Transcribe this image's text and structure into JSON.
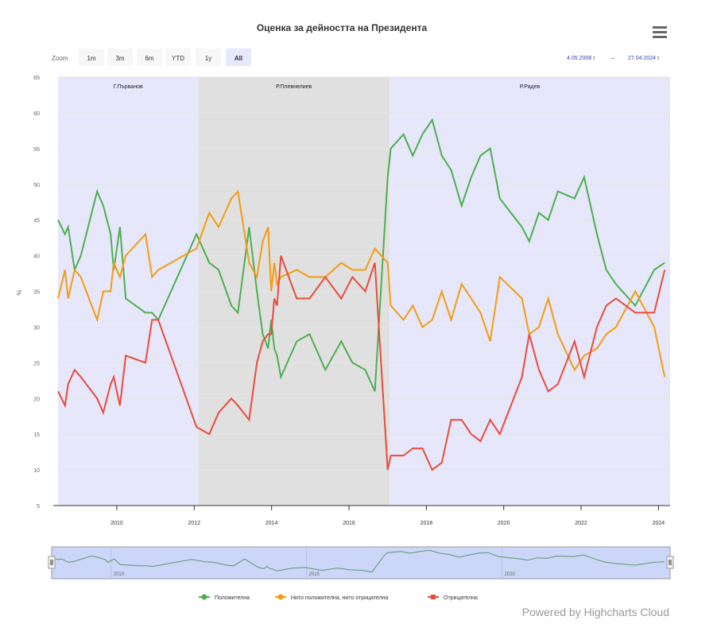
{
  "title": "Оценка за дейността на Президента",
  "menu_icon": "hamburger-menu-icon",
  "range_selector": {
    "zoom_label": "Zoom",
    "buttons": [
      "1m",
      "3m",
      "6m",
      "YTD",
      "1y",
      "All"
    ],
    "selected": "All",
    "from": "4.05.2008 г.",
    "separator": "–",
    "to": "27.04.2024 г."
  },
  "credits": "Powered by Highcharts Cloud",
  "chart_data": {
    "type": "line",
    "title": "Оценка за дейността на Президента",
    "ylabel": "%",
    "ylim": [
      5,
      65
    ],
    "yticks": [
      5,
      10,
      15,
      20,
      25,
      30,
      35,
      40,
      45,
      50,
      55,
      60,
      65
    ],
    "xlim": [
      2008.48,
      2024.3
    ],
    "xticks": [
      2010,
      2012,
      2014,
      2016,
      2018,
      2020,
      2022,
      2024
    ],
    "grid": true,
    "legend": "bottom",
    "plot_bands": [
      {
        "label": "Г.Първанов",
        "from": 2008.48,
        "to": 2012.1,
        "color": "#e6e7fb"
      },
      {
        "label": "Р.Плевнелиев",
        "from": 2012.1,
        "to": 2017.05,
        "color": "#e0e0e0"
      },
      {
        "label": "Р.Радев",
        "from": 2017.05,
        "to": 2024.3,
        "color": "#e6e7fb"
      }
    ],
    "x": [
      2008.48,
      2008.66,
      2008.74,
      2008.91,
      2009.07,
      2009.49,
      2009.65,
      2009.84,
      2009.92,
      2010.08,
      2010.23,
      2010.74,
      2010.91,
      2011.07,
      2012.06,
      2012.39,
      2012.63,
      2012.96,
      2013.13,
      2013.42,
      2013.62,
      2013.77,
      2013.91,
      2013.99,
      2014.07,
      2014.14,
      2014.24,
      2014.65,
      2014.98,
      2015.39,
      2015.8,
      2016.09,
      2016.42,
      2016.67,
      2017.0,
      2017.08,
      2017.41,
      2017.65,
      2017.9,
      2018.15,
      2018.4,
      2018.64,
      2018.91,
      2019.16,
      2019.4,
      2019.65,
      2019.9,
      2020.47,
      2020.66,
      2020.91,
      2021.15,
      2021.4,
      2021.83,
      2022.08,
      2022.41,
      2022.65,
      2022.9,
      2023.4,
      2023.89,
      2024.16
    ],
    "series": [
      {
        "name": "Положителна",
        "color": "#4caf50",
        "values": [
          45,
          43,
          44,
          38,
          40,
          49,
          47,
          43,
          38,
          44,
          34,
          32,
          32,
          31,
          43,
          39,
          38,
          33,
          32,
          44,
          35,
          29,
          27,
          31,
          27,
          26,
          23,
          28,
          29,
          24,
          28,
          25,
          24,
          21,
          51,
          55,
          57,
          54,
          57,
          59,
          54,
          52,
          47,
          51,
          54,
          55,
          48,
          44,
          42,
          46,
          45,
          49,
          48,
          51,
          43,
          38,
          36,
          33,
          38,
          39
        ]
      },
      {
        "name": "Нито положителна, нито отрицателна",
        "color": "#f39c12",
        "values": [
          34,
          38,
          34,
          38,
          37,
          31,
          35,
          35,
          39,
          37,
          40,
          43,
          37,
          38,
          41,
          46,
          44,
          48,
          49,
          39,
          37,
          42,
          44,
          35,
          39,
          36,
          37,
          38,
          37,
          37,
          39,
          38,
          38,
          41,
          39,
          33,
          31,
          33,
          30,
          31,
          35,
          31,
          36,
          34,
          32,
          28,
          37,
          34,
          29,
          30,
          34,
          29,
          24,
          26,
          27,
          29,
          30,
          35,
          30,
          23
        ]
      },
      {
        "name": "Отрицателна",
        "color": "#e74c3c",
        "values": [
          21,
          19,
          22,
          24,
          23,
          20,
          18,
          22,
          23,
          19,
          26,
          25,
          31,
          31,
          16,
          15,
          18,
          20,
          19,
          17,
          25,
          28,
          29,
          29,
          34,
          33,
          40,
          34,
          34,
          37,
          34,
          37,
          35,
          39,
          10,
          12,
          12,
          13,
          13,
          10,
          11,
          17,
          17,
          15,
          14,
          17,
          15,
          23,
          29,
          24,
          21,
          22,
          28,
          23,
          30,
          33,
          34,
          32,
          32,
          38
        ]
      }
    ],
    "navigator": {
      "xticks": [
        2010,
        2015,
        2020
      ],
      "color": "#ccd6f9"
    }
  }
}
